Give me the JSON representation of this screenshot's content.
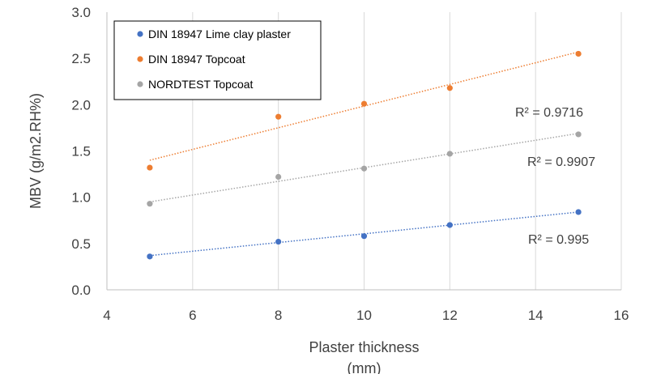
{
  "chart_data": {
    "type": "scatter",
    "title": "",
    "xlabel": "Plaster thickness (mm)",
    "ylabel": "MBV (g/m2.RH%)",
    "xlim": [
      4,
      16
    ],
    "ylim": [
      0,
      3
    ],
    "x_ticks": [
      "4",
      "6",
      "8",
      "10",
      "12",
      "14",
      "16"
    ],
    "y_ticks": [
      "0.0",
      "0.5",
      "1.0",
      "1.5",
      "2.0",
      "2.5",
      "3.0"
    ],
    "grid": "vertical",
    "legend_position": "top-left",
    "series": [
      {
        "name": "DIN 18947 Lime clay plaster",
        "color": "#4472C4",
        "x": [
          5,
          8,
          10,
          12,
          15
        ],
        "y": [
          0.36,
          0.52,
          0.58,
          0.7,
          0.84
        ],
        "trendline": {
          "start": [
            5,
            0.37
          ],
          "end": [
            15,
            0.84
          ]
        },
        "r2_label": "R² = 0.995"
      },
      {
        "name": "DIN 18947 Topcoat",
        "color": "#ED7D31",
        "x": [
          5,
          8,
          10,
          12,
          15
        ],
        "y": [
          1.32,
          1.87,
          2.01,
          2.18,
          2.55
        ],
        "trendline": {
          "start": [
            5,
            1.4
          ],
          "end": [
            15,
            2.57
          ]
        },
        "r2_label": "R² = 0.9716"
      },
      {
        "name": "NORDTEST Topcoat",
        "color": "#A5A5A5",
        "x": [
          5,
          8,
          10,
          12,
          15
        ],
        "y": [
          0.93,
          1.22,
          1.31,
          1.47,
          1.68
        ],
        "trendline": {
          "start": [
            5,
            0.95
          ],
          "end": [
            15,
            1.69
          ]
        },
        "r2_label": "R² = 0.9907"
      }
    ]
  }
}
